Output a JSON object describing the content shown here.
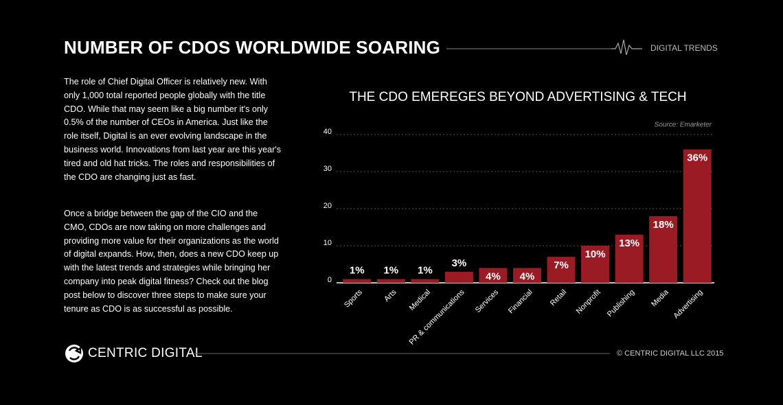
{
  "header": {
    "title": "NUMBER OF CDOS WORLDWIDE SOARING",
    "tag": "DIGITAL TRENDS"
  },
  "body": {
    "paragraphs": [
      "The role of Chief Digital Officer is relatively new. With only 1,000 total reported people globally with the title CDO. While that may seem like a big number it's only 0.5% of the number of CEOs in America. Just like the role itself, Digital is an ever evolving landscape in the business world. Innovations from last year are this year's tired and old hat tricks. The roles and responsibilities of the CDO are changing just as fast.",
      "Once a bridge between the gap of the CIO and the CMO, CDOs are now taking on more challenges and providing more value for their organizations as the world of digital expands. How, then, does a new CDO keep up with the latest trends and strategies while bringing her company into peak digital fitness? Check out the blog post below to discover three steps to make sure your tenure as CDO is as successful as possible."
    ]
  },
  "chart_data": {
    "type": "bar",
    "title": "THE CDO EMEREGES BEYOND ADVERTISING & TECH",
    "source": "Source: Emarketer",
    "categories": [
      "Sports",
      "Arts",
      "Medical",
      "PR & communications",
      "Services",
      "Financial",
      "Retail",
      "Nonprofit",
      "Publishing",
      "Media",
      "Advertising"
    ],
    "values": [
      1,
      1,
      1,
      3,
      4,
      4,
      7,
      10,
      13,
      18,
      36
    ],
    "value_labels": [
      "1%",
      "1%",
      "1%",
      "3%",
      "4%",
      "4%",
      "7%",
      "10%",
      "13%",
      "18%",
      "36%"
    ],
    "color": "#9b1b24",
    "ylim": [
      0,
      40
    ],
    "yticks": [
      0,
      10,
      20,
      30,
      40
    ],
    "grid": true
  },
  "footer": {
    "brand": "CENTRIC DIGITAL",
    "copyright": "© CENTRIC DIGITAL LLC 2015"
  }
}
